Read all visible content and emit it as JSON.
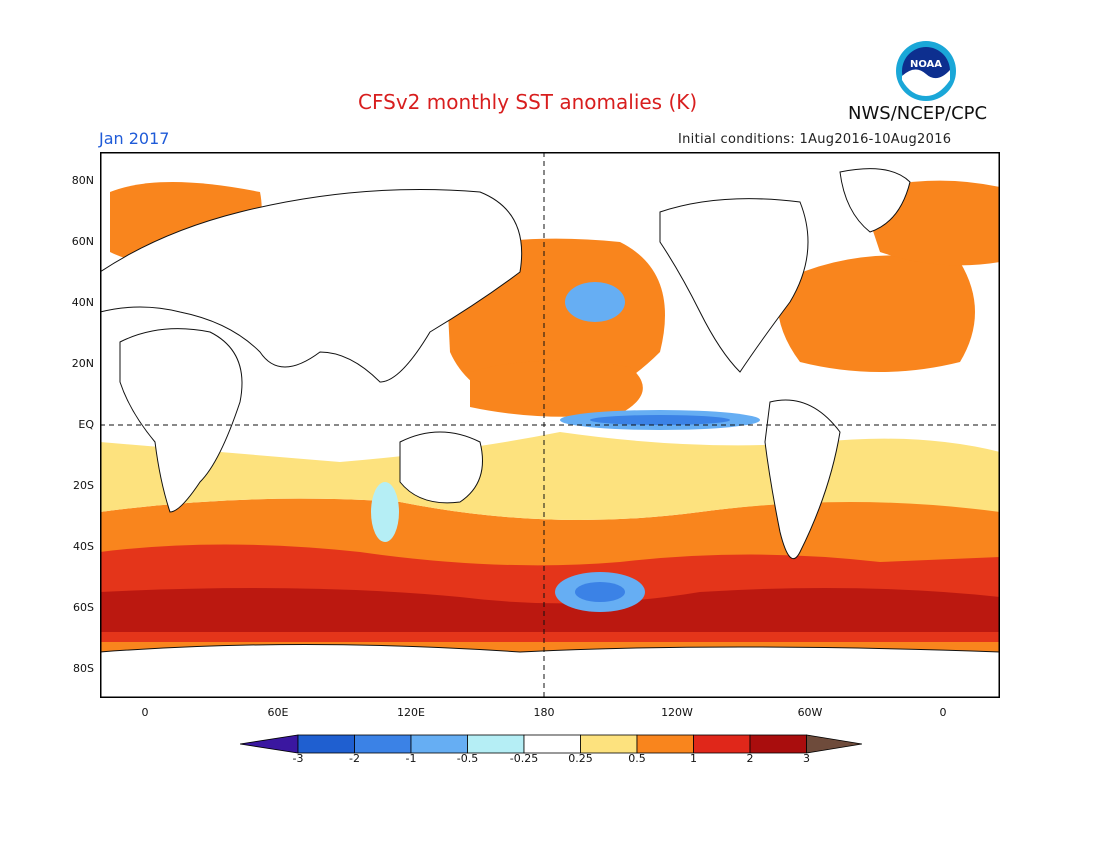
{
  "header": {
    "title": "CFSv2 monthly SST anomalies (K)",
    "org": "NWS/NCEP/CPC",
    "valid_month": "Jan 2017",
    "initial_conditions": "Initial conditions: 1Aug2016-10Aug2016",
    "logo_text": "NOAA"
  },
  "axes": {
    "y_labels": [
      "80N",
      "60N",
      "40N",
      "20N",
      "EQ",
      "20S",
      "40S",
      "60S",
      "80S"
    ],
    "x_labels": [
      "0",
      "60E",
      "120E",
      "180",
      "120W",
      "60W",
      "0"
    ]
  },
  "colorbar": {
    "labels": [
      "-3",
      "-2",
      "-1",
      "-0.5",
      "-0.25",
      "0.25",
      "0.5",
      "1",
      "2",
      "3"
    ],
    "colors": [
      "#3a17a0",
      "#1f5fd0",
      "#3b82e6",
      "#66aef3",
      "#b5eef5",
      "#ffffff",
      "#fde27e",
      "#f9851d",
      "#e0271a",
      "#a90d0d",
      "#6e4b3b"
    ]
  }
}
